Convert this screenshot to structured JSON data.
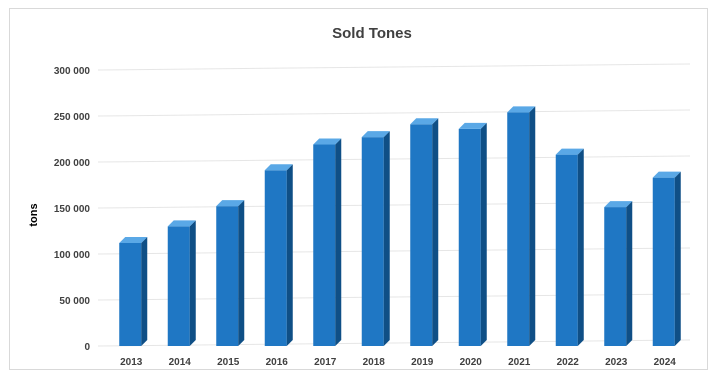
{
  "chart_data": {
    "type": "bar",
    "title": "Sold Tones",
    "xlabel": "",
    "ylabel": "tons",
    "categories": [
      "2013",
      "2014",
      "2015",
      "2016",
      "2017",
      "2018",
      "2019",
      "2020",
      "2021",
      "2022",
      "2023",
      "2024"
    ],
    "values": [
      112000,
      130000,
      152000,
      191000,
      219000,
      227000,
      241000,
      236000,
      254000,
      208000,
      151000,
      183000
    ],
    "ylim": [
      0,
      300000
    ],
    "yticks": [
      0,
      50000,
      100000,
      150000,
      200000,
      250000,
      300000
    ],
    "ytick_labels": [
      "0",
      "50 000",
      "100 000",
      "150 000",
      "200 000",
      "250 000",
      "300 000"
    ],
    "grid": true,
    "legend": "none",
    "bar_style": "3d-column",
    "colors": {
      "bar_front": "#1f77c4",
      "bar_side": "#0f4f86",
      "bar_top": "#5aa8e6",
      "grid": "#e6e6e6",
      "text": "#404040"
    }
  }
}
